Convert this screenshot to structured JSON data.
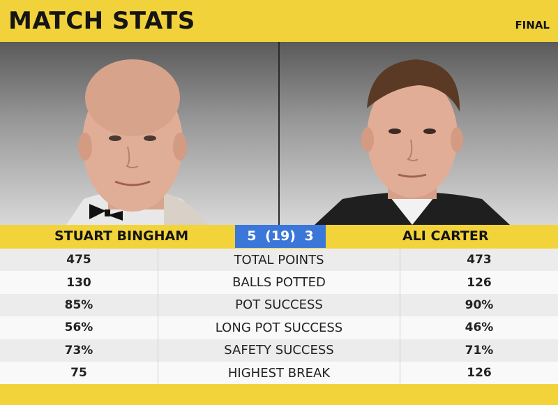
{
  "header": {
    "title": "MATCH STATS",
    "stage": "FINAL"
  },
  "players": {
    "left": {
      "name": "STUART BINGHAM",
      "frames": "5"
    },
    "right": {
      "name": "ALI CARTER",
      "frames": "3"
    }
  },
  "score": {
    "best_of": "(19)"
  },
  "stats": [
    {
      "label": "TOTAL POINTS",
      "left": "475",
      "right": "473"
    },
    {
      "label": "BALLS POTTED",
      "left": "130",
      "right": "126"
    },
    {
      "label": "POT SUCCESS",
      "left": "85%",
      "right": "90%"
    },
    {
      "label": "LONG POT SUCCESS",
      "left": "56%",
      "right": "46%"
    },
    {
      "label": "SAFETY SUCCESS",
      "left": "73%",
      "right": "71%"
    },
    {
      "label": "HIGHEST BREAK",
      "left": "75",
      "right": "126"
    }
  ]
}
